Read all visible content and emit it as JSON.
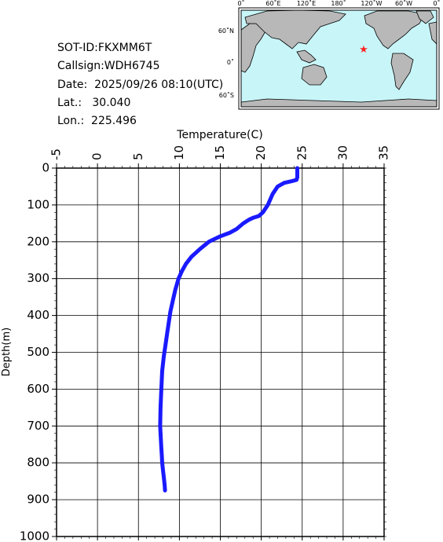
{
  "info": {
    "sot_id": "SOT-ID:FKXMM6T",
    "callsign": "Callsign:WDH6745",
    "date": "Date:  2025/09/26 08:10(UTC)",
    "lat": "Lat.:   30.040",
    "lon": "Lon.:  225.496"
  },
  "map": {
    "lon_labels": [
      "0˚",
      "60˚E",
      "120˚E",
      "180˚",
      "120˚W",
      "60˚W",
      "0˚"
    ],
    "lat_labels": [
      "60˚N",
      "0˚",
      "60˚S"
    ],
    "ocean_color": "#c8f5f8",
    "land_color": "#b8b8b8",
    "marker_color": "#ff2020",
    "marker_icon": "star-icon"
  },
  "chart_data": {
    "type": "line",
    "xlabel": "Temperature(C)",
    "ylabel": "Depth(m)",
    "x_ticks": [
      "-5",
      "0",
      "5",
      "10",
      "15",
      "20",
      "25",
      "30",
      "35"
    ],
    "y_ticks": [
      "0",
      "100",
      "200",
      "300",
      "400",
      "500",
      "600",
      "700",
      "800",
      "900",
      "1000"
    ],
    "xlim": [
      -5,
      35
    ],
    "ylim": [
      0,
      1000
    ],
    "y_inverted": true,
    "x_axis_position": "top",
    "grid": true,
    "line_color": "#1a1aff",
    "series": [
      {
        "x": [
          24.4,
          24.4,
          24.3,
          23.8,
          22.8,
          22.0,
          21.4,
          20.8,
          20.2,
          19.7,
          19.0,
          18.5,
          17.8,
          17.0,
          16.2,
          15.0,
          13.6,
          12.5,
          11.5,
          10.8,
          10.3,
          9.9,
          9.5,
          9.2,
          8.9,
          8.7,
          8.5,
          8.3,
          8.1,
          7.9,
          7.8,
          7.7,
          7.65,
          7.7,
          7.75,
          7.8,
          7.85,
          7.9,
          8.0,
          8.1,
          8.2,
          8.25
        ],
        "y": [
          0,
          25,
          32,
          35,
          40,
          50,
          70,
          100,
          120,
          130,
          135,
          140,
          150,
          165,
          175,
          185,
          200,
          220,
          240,
          260,
          280,
          300,
          330,
          360,
          390,
          420,
          450,
          480,
          510,
          550,
          600,
          650,
          700,
          720,
          740,
          760,
          780,
          800,
          820,
          840,
          860,
          875
        ]
      }
    ]
  }
}
